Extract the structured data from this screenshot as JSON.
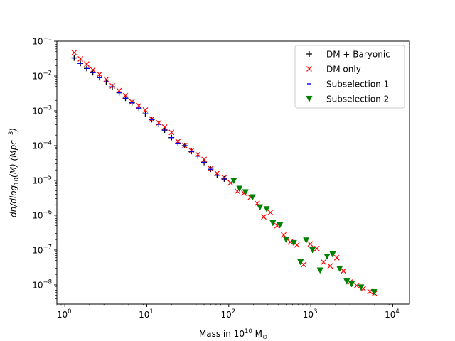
{
  "chart_data": {
    "type": "scatter",
    "title": "",
    "xlabel": {
      "prefix": "Mass in 10",
      "sup": "10",
      "mid": " M",
      "sub": "⊙"
    },
    "ylabel": {
      "a": "dn/dlog",
      "sub": "10",
      "b": "(M) (Mpc",
      "sup": "−3",
      "c": ")"
    },
    "x_scale": "log",
    "y_scale": "log",
    "xlim": [
      0.8,
      16000
    ],
    "ylim": [
      2.8e-09,
      0.1
    ],
    "x_ticks": [
      {
        "value": 1,
        "base": "10",
        "exp": "0"
      },
      {
        "value": 10,
        "base": "10",
        "exp": "1"
      },
      {
        "value": 100,
        "base": "10",
        "exp": "2"
      },
      {
        "value": 1000,
        "base": "10",
        "exp": "3"
      },
      {
        "value": 10000,
        "base": "10",
        "exp": "4"
      }
    ],
    "y_ticks": [
      {
        "value": 1e-08,
        "base": "10",
        "exp": "−8"
      },
      {
        "value": 1e-07,
        "base": "10",
        "exp": "−7"
      },
      {
        "value": 1e-06,
        "base": "10",
        "exp": "−6"
      },
      {
        "value": 1e-05,
        "base": "10",
        "exp": "−5"
      },
      {
        "value": 0.0001,
        "base": "10",
        "exp": "−4"
      },
      {
        "value": 0.001,
        "base": "10",
        "exp": "−3"
      },
      {
        "value": 0.01,
        "base": "10",
        "exp": "−2"
      },
      {
        "value": 0.1,
        "base": "10",
        "exp": "−1"
      }
    ],
    "grid": false,
    "legend_position": "upper right",
    "series": [
      {
        "name": "DM + Baryonic",
        "marker": "plus",
        "color": "#000000",
        "points": [
          [
            1.3,
            0.033
          ],
          [
            1.55,
            0.023
          ],
          [
            1.85,
            0.0165
          ],
          [
            2.2,
            0.0125
          ],
          [
            2.65,
            0.009
          ],
          [
            3.2,
            0.0068
          ],
          [
            3.8,
            0.0049
          ],
          [
            4.6,
            0.0033
          ],
          [
            5.5,
            0.0023
          ],
          [
            6.6,
            0.0017
          ],
          [
            8.0,
            0.0012
          ],
          [
            9.6,
            0.00082
          ],
          [
            11.5,
            0.00056
          ],
          [
            14,
            0.00041
          ],
          [
            16.5,
            0.00028
          ],
          [
            20,
            0.00017
          ],
          [
            24,
            0.000118
          ],
          [
            29,
            0.0001
          ],
          [
            35,
            6.8e-05
          ],
          [
            42,
            5e-05
          ],
          [
            50,
            3.3e-05
          ],
          [
            60,
            2.1e-05
          ],
          [
            72,
            1.4e-05
          ],
          [
            88,
            1.1e-05
          ]
        ]
      },
      {
        "name": "DM only",
        "marker": "x",
        "color": "#ff0000",
        "points": [
          [
            1.3,
            0.047
          ],
          [
            1.55,
            0.031
          ],
          [
            1.85,
            0.022
          ],
          [
            2.2,
            0.015
          ],
          [
            2.65,
            0.0112
          ],
          [
            3.2,
            0.008
          ],
          [
            3.8,
            0.0052
          ],
          [
            4.6,
            0.0038
          ],
          [
            5.5,
            0.0027
          ],
          [
            6.6,
            0.0018
          ],
          [
            8.0,
            0.0014
          ],
          [
            9.6,
            0.00105
          ],
          [
            11.5,
            0.00058
          ],
          [
            14,
            0.00045
          ],
          [
            16.5,
            0.00034
          ],
          [
            20,
            0.00024
          ],
          [
            24,
            0.000132
          ],
          [
            29,
            0.0001
          ],
          [
            35,
            7.2e-05
          ],
          [
            42,
            5.6e-05
          ],
          [
            50,
            4e-05
          ],
          [
            60,
            2.2e-05
          ],
          [
            72,
            1.6e-05
          ],
          [
            88,
            1.2e-05
          ],
          [
            105,
            8.5e-06
          ],
          [
            127,
            4.9e-06
          ],
          [
            153,
            4.3e-06
          ],
          [
            184,
            3.3e-06
          ],
          [
            222,
            2.2e-06
          ],
          [
            267,
            9e-07
          ],
          [
            322,
            1.2e-06
          ],
          [
            388,
            5e-07
          ],
          [
            467,
            2.7e-07
          ],
          [
            563,
            1.7e-07
          ],
          [
            678,
            1.4e-07
          ],
          [
            817,
            3.8e-08
          ],
          [
            985,
            1.5e-07
          ],
          [
            1187,
            1.1e-07
          ],
          [
            1430,
            4.5e-08
          ],
          [
            1723,
            3.5e-08
          ],
          [
            2076,
            6e-08
          ],
          [
            2500,
            2.5e-08
          ],
          [
            3013,
            1.2e-08
          ],
          [
            3630,
            9.5e-09
          ],
          [
            4373,
            7.8e-09
          ],
          [
            5269,
            6.4e-09
          ],
          [
            6000,
            5.7e-09
          ]
        ]
      },
      {
        "name": "Subselection 1",
        "marker": "hline",
        "color": "#0000ff",
        "points": [
          [
            1.3,
            0.033
          ],
          [
            1.55,
            0.023
          ],
          [
            1.85,
            0.0165
          ],
          [
            2.2,
            0.0125
          ],
          [
            2.65,
            0.009
          ],
          [
            3.2,
            0.0068
          ],
          [
            3.8,
            0.0049
          ],
          [
            4.6,
            0.0033
          ],
          [
            5.5,
            0.0023
          ],
          [
            6.6,
            0.0017
          ],
          [
            8.0,
            0.0012
          ],
          [
            9.6,
            0.00082
          ],
          [
            11.5,
            0.00056
          ],
          [
            14,
            0.00041
          ],
          [
            16.5,
            0.00028
          ],
          [
            20,
            0.00017
          ],
          [
            24,
            0.000118
          ],
          [
            29,
            0.0001
          ],
          [
            35,
            6.8e-05
          ],
          [
            42,
            5e-05
          ],
          [
            50,
            3.3e-05
          ],
          [
            60,
            2.1e-05
          ],
          [
            72,
            1.4e-05
          ],
          [
            88,
            1.1e-05
          ]
        ]
      },
      {
        "name": "Subselection 2",
        "marker": "triangle_down",
        "color": "#008000",
        "points": [
          [
            115,
            9.8e-06
          ],
          [
            135,
            5.8e-06
          ],
          [
            160,
            4.6e-06
          ],
          [
            195,
            3.3e-06
          ],
          [
            240,
            1.7e-06
          ],
          [
            290,
            1.5e-06
          ],
          [
            345,
            6e-07
          ],
          [
            420,
            5.2e-07
          ],
          [
            500,
            2e-07
          ],
          [
            620,
            1.6e-07
          ],
          [
            750,
            4.5e-08
          ],
          [
            880,
            1.9e-07
          ],
          [
            1050,
            1e-07
          ],
          [
            1300,
            2.6e-08
          ],
          [
            1580,
            6.5e-08
          ],
          [
            1850,
            7.5e-08
          ],
          [
            2250,
            2.9e-08
          ],
          [
            2750,
            1.25e-08
          ],
          [
            3150,
            1.05e-08
          ],
          [
            4100,
            8.5e-09
          ],
          [
            5900,
            6.2e-09
          ]
        ]
      }
    ]
  }
}
